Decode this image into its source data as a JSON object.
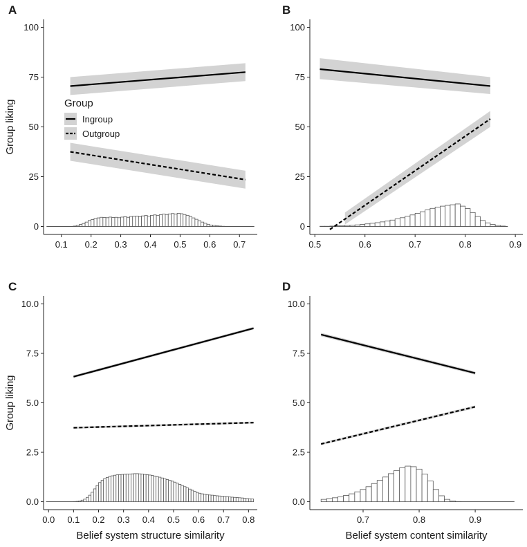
{
  "chart_data": [
    {
      "panel": "A",
      "type": "line",
      "ylabel": "Group liking",
      "xlabel": "",
      "xlim": [
        0.04,
        0.76
      ],
      "ylim": [
        -4,
        104
      ],
      "xticks": [
        0.1,
        0.2,
        0.3,
        0.4,
        0.5,
        0.6,
        0.7
      ],
      "yticks": [
        0,
        25,
        50,
        75,
        100
      ],
      "legend": {
        "title": "Group",
        "placement": "upper-left",
        "entries": [
          "Ingroup",
          "Outgroup"
        ]
      },
      "series": [
        {
          "name": "Ingroup",
          "style": "solid",
          "x": [
            0.13,
            0.72
          ],
          "y": [
            70.5,
            77.5
          ],
          "lo": [
            66,
            73
          ],
          "hi": [
            75,
            82
          ]
        },
        {
          "name": "Outgroup",
          "style": "dashed",
          "x": [
            0.13,
            0.72
          ],
          "y": [
            37.5,
            23.5
          ],
          "lo": [
            33,
            19
          ],
          "hi": [
            42,
            28
          ]
        }
      ],
      "histogram": {
        "baseline_x": [
          0.05,
          0.75
        ],
        "bin_start": 0.14,
        "bin_width": 0.01,
        "counts": [
          0.2,
          0.5,
          1.0,
          1.5,
          2.2,
          3.0,
          3.5,
          4.0,
          4.3,
          4.6,
          4.5,
          4.4,
          4.7,
          4.5,
          4.6,
          4.4,
          4.7,
          4.9,
          4.6,
          5.0,
          5.1,
          5.2,
          4.9,
          5.3,
          5.5,
          5.2,
          5.6,
          5.8,
          5.5,
          5.9,
          6.2,
          6.0,
          6.3,
          6.5,
          6.2,
          6.6,
          6.4,
          6.0,
          5.6,
          5.0,
          4.3,
          3.6,
          2.9,
          2.2,
          1.6,
          1.1,
          0.7,
          0.5,
          0.3,
          0.2,
          0.1
        ]
      }
    },
    {
      "panel": "B",
      "type": "line",
      "ylabel": "",
      "xlabel": "",
      "xlim": [
        0.49,
        0.915
      ],
      "ylim": [
        -4,
        104
      ],
      "xticks": [
        0.5,
        0.6,
        0.7,
        0.8,
        0.9
      ],
      "yticks": [
        0,
        25,
        50,
        75,
        100
      ],
      "series": [
        {
          "name": "Ingroup",
          "style": "solid",
          "x": [
            0.51,
            0.85
          ],
          "y": [
            79,
            70.5
          ],
          "lo": [
            74,
            66.5
          ],
          "hi": [
            84.5,
            75
          ]
        },
        {
          "name": "Outgroup",
          "style": "dashed",
          "x": [
            0.53,
            0.85
          ],
          "y": [
            -1.5,
            54
          ],
          "lo_x": [
            0.56,
            0.85
          ],
          "lo": [
            1,
            50
          ],
          "hi": [
            7,
            58
          ]
        }
      ],
      "histogram": {
        "baseline_x": [
          0.51,
          0.885
        ],
        "bin_start": 0.51,
        "bin_width": 0.01,
        "counts": [
          0.1,
          0.1,
          0.2,
          0.3,
          0.4,
          0.5,
          0.6,
          0.8,
          1.0,
          1.3,
          1.6,
          1.9,
          2.3,
          2.7,
          3.2,
          3.8,
          4.4,
          5.1,
          5.8,
          6.6,
          7.4,
          8.3,
          9.1,
          9.7,
          10.2,
          10.6,
          10.9,
          11.3,
          10.2,
          9.0,
          7.0,
          5.0,
          3.0,
          1.8,
          1.0,
          0.5,
          0.2
        ]
      }
    },
    {
      "panel": "C",
      "type": "line",
      "ylabel": "Group liking",
      "xlabel": "Belief system structure similarity",
      "xlim": [
        -0.02,
        0.835
      ],
      "ylim": [
        -0.4,
        10.4
      ],
      "xticks": [
        0.0,
        0.1,
        0.2,
        0.3,
        0.4,
        0.5,
        0.6,
        0.7,
        0.8
      ],
      "yticks": [
        0.0,
        2.5,
        5.0,
        7.5,
        10.0
      ],
      "series": [
        {
          "name": "Ingroup",
          "style": "solid",
          "x": [
            0.1,
            0.82
          ],
          "y": [
            6.32,
            8.77
          ],
          "lo": [
            6.25,
            8.7
          ],
          "hi": [
            6.39,
            8.84
          ]
        },
        {
          "name": "Outgroup",
          "style": "dashed",
          "x": [
            0.1,
            0.82
          ],
          "y": [
            3.74,
            4.0
          ],
          "lo": [
            3.69,
            3.95
          ],
          "hi": [
            3.79,
            4.05
          ]
        }
      ],
      "histogram": {
        "baseline_x": [
          -0.01,
          0.82
        ],
        "bin_start": 0.1,
        "bin_width": 0.01,
        "counts": [
          0.01,
          0.02,
          0.04,
          0.08,
          0.13,
          0.22,
          0.33,
          0.48,
          0.65,
          0.82,
          0.97,
          1.08,
          1.17,
          1.23,
          1.28,
          1.31,
          1.34,
          1.36,
          1.37,
          1.38,
          1.39,
          1.4,
          1.4,
          1.41,
          1.42,
          1.42,
          1.41,
          1.4,
          1.38,
          1.37,
          1.35,
          1.33,
          1.3,
          1.27,
          1.24,
          1.2,
          1.16,
          1.12,
          1.08,
          1.04,
          0.99,
          0.94,
          0.88,
          0.82,
          0.76,
          0.7,
          0.64,
          0.58,
          0.52,
          0.47,
          0.43,
          0.4,
          0.38,
          0.36,
          0.34,
          0.33,
          0.31,
          0.3,
          0.29,
          0.28,
          0.27,
          0.26,
          0.24,
          0.23,
          0.22,
          0.21,
          0.2,
          0.19,
          0.17,
          0.16,
          0.15,
          0.14
        ]
      }
    },
    {
      "panel": "D",
      "type": "line",
      "ylabel": "",
      "xlabel": "Belief system content similarity",
      "xlim": [
        0.605,
        0.985
      ],
      "ylim": [
        -0.4,
        10.4
      ],
      "xticks": [
        0.7,
        0.8,
        0.9
      ],
      "yticks": [
        0.0,
        2.5,
        5.0,
        7.5,
        10.0
      ],
      "series": [
        {
          "name": "Ingroup",
          "style": "solid",
          "x": [
            0.625,
            0.9
          ],
          "y": [
            8.45,
            6.5
          ],
          "lo": [
            8.36,
            6.42
          ],
          "hi": [
            8.54,
            6.58
          ]
        },
        {
          "name": "Outgroup",
          "style": "dashed",
          "x": [
            0.625,
            0.9
          ],
          "y": [
            2.92,
            4.8
          ],
          "lo": [
            2.86,
            4.73
          ],
          "hi": [
            2.98,
            4.87
          ]
        }
      ],
      "histogram": {
        "baseline_x": [
          0.625,
          0.97
        ],
        "bin_start": 0.625,
        "bin_width": 0.01,
        "counts": [
          0.12,
          0.16,
          0.2,
          0.25,
          0.32,
          0.4,
          0.5,
          0.62,
          0.76,
          0.92,
          1.08,
          1.25,
          1.42,
          1.58,
          1.72,
          1.8,
          1.77,
          1.65,
          1.4,
          1.05,
          0.62,
          0.3,
          0.12,
          0.04,
          0.01
        ]
      }
    }
  ]
}
